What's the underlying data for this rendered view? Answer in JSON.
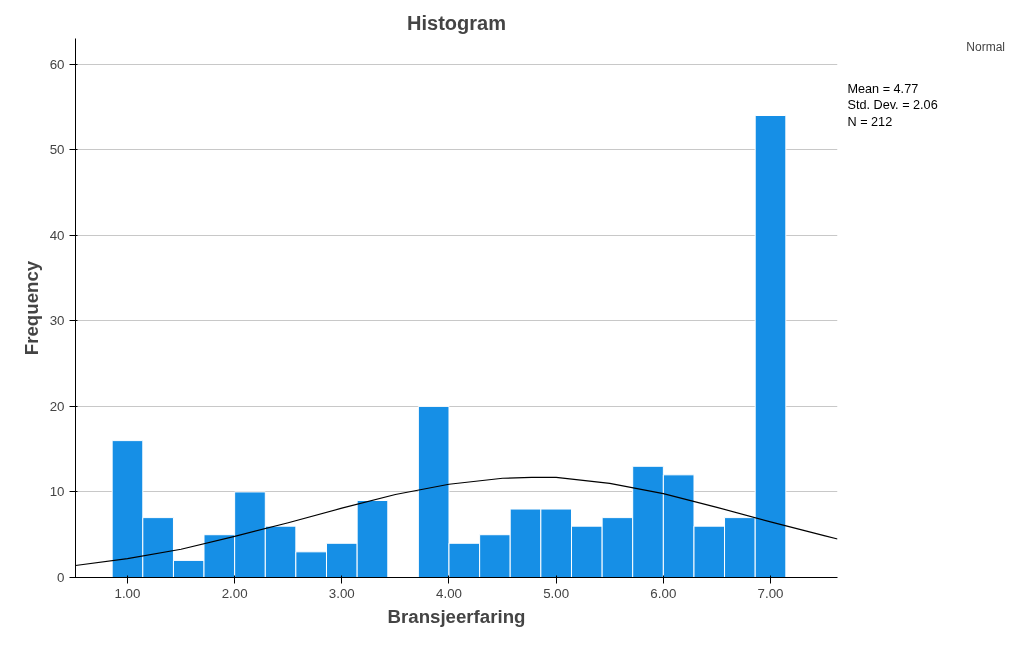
{
  "chart_data": {
    "type": "histogram",
    "title": "Histogram",
    "xlabel": "Bransjeerfaring",
    "ylabel": "Frequency",
    "bins": [
      0.857,
      1.143,
      1.429,
      1.714,
      2.0,
      2.286,
      2.571,
      2.857,
      3.143,
      3.429,
      3.714,
      4.0,
      4.286,
      4.571,
      4.857,
      5.143,
      5.429,
      5.714,
      6.0,
      6.286,
      6.571,
      6.857,
      7.143
    ],
    "values": [
      16,
      7,
      2,
      5,
      10,
      6,
      3,
      4,
      9,
      0,
      20,
      4,
      5,
      8,
      8,
      6,
      7,
      13,
      12,
      6,
      7,
      54
    ],
    "color": "#168fe6",
    "series": [
      {
        "type": "line",
        "name": "Normal",
        "color": "#000000",
        "x": [
          0.515,
          1.0,
          1.5,
          2.0,
          2.5,
          3.0,
          3.5,
          4.0,
          4.5,
          4.77,
          5.0,
          5.5,
          6.0,
          6.5,
          7.0,
          7.5,
          7.625
        ],
        "values": [
          1.4,
          2.2,
          3.3,
          4.8,
          6.4,
          8.1,
          9.7,
          10.9,
          11.6,
          11.7,
          11.7,
          11.0,
          9.8,
          8.2,
          6.5,
          4.9,
          4.5
        ]
      }
    ],
    "xlim": [
      0.515,
      7.625
    ],
    "ylim": [
      0,
      63
    ],
    "xticks": [
      {
        "value": 1,
        "label": "1.00"
      },
      {
        "value": 2,
        "label": "2.00"
      },
      {
        "value": 3,
        "label": "3.00"
      },
      {
        "value": 4,
        "label": "4.00"
      },
      {
        "value": 5,
        "label": "5.00"
      },
      {
        "value": 6,
        "label": "6.00"
      },
      {
        "value": 7,
        "label": "7.00"
      }
    ],
    "yticks": [
      0,
      10,
      20,
      30,
      40,
      50,
      60
    ],
    "grid": "y",
    "legend": "top right",
    "annotations": [
      "Mean = 4.77",
      "Std. Dev. = 2.06",
      "N = 212"
    ]
  }
}
